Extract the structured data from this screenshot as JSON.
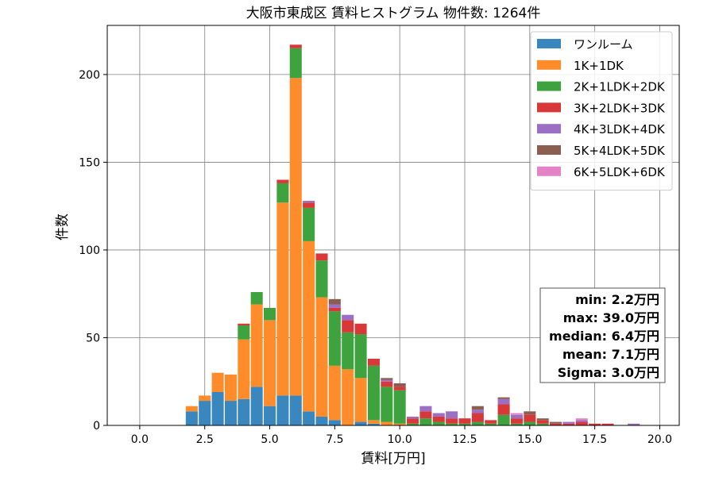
{
  "chart_data": {
    "type": "bar",
    "stacked": true,
    "title": "大阪市東成区 賃料ヒストグラム 物件数: 1264件",
    "xlabel": "賃料[万円]",
    "ylabel": "件数",
    "xlim": [
      -1.25,
      20.75
    ],
    "ylim": [
      0,
      228
    ],
    "xticks": [
      "0.0",
      "2.5",
      "5.0",
      "7.5",
      "10.0",
      "12.5",
      "15.0",
      "17.5",
      "20.0"
    ],
    "yticks": [
      "0",
      "50",
      "100",
      "150",
      "200"
    ],
    "grid": true,
    "legend_position": "top-right",
    "bin_width": 0.5,
    "x": [
      2.0,
      2.5,
      3.0,
      3.5,
      4.0,
      4.5,
      5.0,
      5.5,
      6.0,
      6.5,
      7.0,
      7.5,
      8.0,
      8.5,
      9.0,
      9.5,
      10.0,
      10.5,
      11.0,
      11.5,
      12.0,
      12.5,
      13.0,
      13.5,
      14.0,
      14.5,
      15.0,
      15.5,
      16.0,
      16.5,
      17.0,
      17.5,
      18.0,
      18.5,
      19.0
    ],
    "series": [
      {
        "name": "ワンルーム",
        "color": "#3a87c0",
        "values": [
          8,
          14,
          19,
          14,
          15,
          22,
          11,
          17,
          17,
          8,
          5,
          3,
          0,
          2,
          1,
          0,
          0,
          0,
          0,
          0,
          0,
          0,
          0,
          0,
          0,
          0,
          0,
          0,
          0,
          0,
          0,
          0,
          0,
          0,
          0
        ]
      },
      {
        "name": "1K+1DK",
        "color": "#ff8c2a",
        "values": [
          3,
          3,
          11,
          15,
          34,
          47,
          49,
          110,
          181,
          97,
          68,
          31,
          32,
          25,
          2,
          2,
          1,
          0,
          0,
          0,
          0,
          0,
          0,
          0,
          0,
          0,
          0,
          0,
          0,
          0,
          0,
          0,
          0,
          0,
          0
        ]
      },
      {
        "name": "2K+1LDK+2DK",
        "color": "#3ea33e",
        "values": [
          0,
          0,
          0,
          0,
          8,
          7,
          7,
          11,
          17,
          19,
          21,
          31,
          21,
          25,
          31,
          20,
          19,
          1,
          4,
          2,
          1,
          1,
          2,
          1,
          6,
          1,
          2,
          1,
          0,
          0,
          0,
          0,
          0,
          0,
          0
        ]
      },
      {
        "name": "3K+2LDK+3DK",
        "color": "#d83838",
        "values": [
          0,
          0,
          0,
          0,
          1,
          0,
          0,
          2,
          2,
          3,
          4,
          2,
          7,
          6,
          4,
          3,
          2,
          3,
          4,
          3,
          3,
          3,
          5,
          2,
          6,
          3,
          4,
          2,
          1,
          1,
          2,
          1,
          1,
          0,
          0
        ]
      },
      {
        "name": "4K+3LDK+4DK",
        "color": "#9b6fc4",
        "values": [
          0,
          0,
          0,
          0,
          0,
          0,
          0,
          0,
          0,
          1,
          0,
          2,
          3,
          0,
          0,
          1,
          0,
          1,
          3,
          2,
          4,
          0,
          2,
          0,
          3,
          2,
          0,
          0,
          0,
          1,
          1,
          0,
          0,
          0,
          1
        ]
      },
      {
        "name": "5K+4LDK+5DK",
        "color": "#8c5e52",
        "values": [
          0,
          0,
          0,
          0,
          0,
          0,
          0,
          0,
          0,
          0,
          0,
          3,
          0,
          0,
          0,
          1,
          2,
          0,
          0,
          0,
          0,
          0,
          2,
          0,
          1,
          0,
          2,
          1,
          1,
          0,
          0,
          0,
          0,
          0,
          0
        ]
      },
      {
        "name": "6K+5LDK+6DK",
        "color": "#e583c8",
        "values": [
          0,
          0,
          0,
          0,
          0,
          0,
          0,
          0,
          0,
          0,
          0,
          0,
          0,
          0,
          0,
          0,
          0,
          0,
          0,
          0,
          0,
          0,
          0,
          0,
          0,
          1,
          0,
          0,
          0,
          0,
          1,
          0,
          0,
          0,
          0
        ]
      }
    ],
    "stats": [
      "min: 2.2万円",
      "max: 39.0万円",
      "median: 6.4万円",
      "mean: 7.1万円",
      "Sigma: 3.0万円"
    ]
  }
}
